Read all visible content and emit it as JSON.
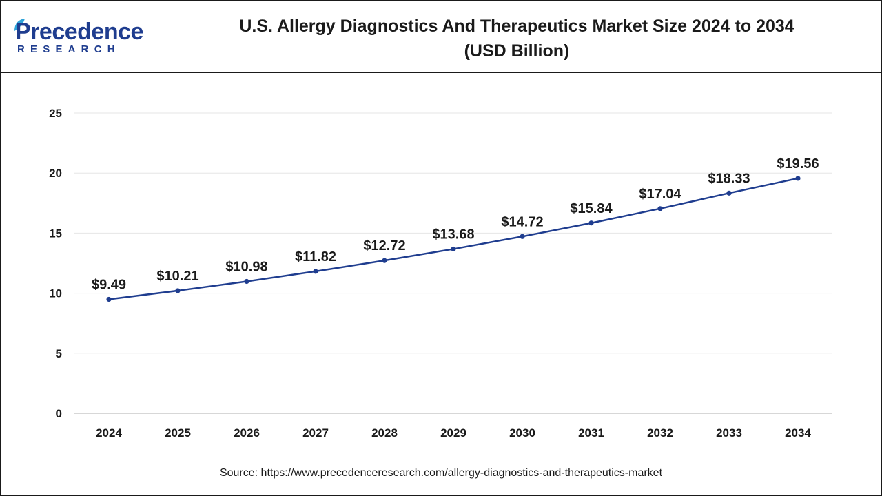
{
  "logo": {
    "name": "Precedence",
    "sub": "RESEARCH"
  },
  "header": {
    "title_line1": "U.S. Allergy Diagnostics And Therapeutics Market Size 2024 to 2034",
    "title_line2": "(USD Billion)"
  },
  "source": "Source: https://www.precedenceresearch.com/allergy-diagnostics-and-therapeutics-market",
  "colors": {
    "line": "#1f3d8f",
    "marker": "#1f3d8f",
    "brand": "#1f3d8f"
  },
  "chart_data": {
    "type": "line",
    "title": "U.S. Allergy Diagnostics And Therapeutics Market Size 2024 to 2034 (USD Billion)",
    "categories": [
      "2024",
      "2025",
      "2026",
      "2027",
      "2028",
      "2029",
      "2030",
      "2031",
      "2032",
      "2033",
      "2034"
    ],
    "values": [
      9.49,
      10.21,
      10.98,
      11.82,
      12.72,
      13.68,
      14.72,
      15.84,
      17.04,
      18.33,
      19.56
    ],
    "data_labels": [
      "$9.49",
      "$10.21",
      "$10.98",
      "$11.82",
      "$12.72",
      "$13.68",
      "$14.72",
      "$15.84",
      "$17.04",
      "$18.33",
      "$19.56"
    ],
    "ylim": [
      0,
      25
    ],
    "yticks": [
      "0",
      "5",
      "10",
      "15",
      "20",
      "25"
    ],
    "grid": true,
    "legend": "none",
    "xlabel": "",
    "ylabel": ""
  }
}
